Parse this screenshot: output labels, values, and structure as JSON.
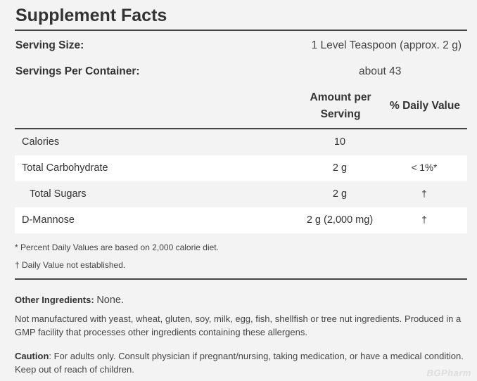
{
  "title": "Supplement Facts",
  "serving_size": {
    "label": "Serving Size:",
    "value": "1 Level Teaspoon (approx. 2 g)"
  },
  "servings_per_container": {
    "label": "Servings Per Container:",
    "value": "about 43"
  },
  "headers": {
    "amount_line1": "Amount per",
    "amount_line2": "Serving",
    "daily_value": "% Daily Value"
  },
  "rows": [
    {
      "name": "Calories",
      "amount": "10",
      "dv": ""
    },
    {
      "name": "Total Carbohydrate",
      "amount": "2 g",
      "dv": "< 1%*"
    },
    {
      "name": "Total Sugars",
      "amount": "2 g",
      "dv": "†"
    },
    {
      "name": "D-Mannose",
      "amount": "2 g (2,000 mg)",
      "dv": "†"
    }
  ],
  "footnotes": {
    "percent": "* Percent Daily Values are based on 2,000 calorie diet.",
    "dagger": "† Daily Value not established."
  },
  "other_ingredients": {
    "label": "Other Ingredients:",
    "value": "None."
  },
  "allergen_note": "Not manufactured with yeast, wheat, gluten, soy, milk, egg, fish, shellfish or tree nut ingredients. Produced in a GMP facility that processes other ingredients containing these allergens.",
  "caution": {
    "label": "Caution",
    "text": ": For adults only. Consult physician if pregnant/nursing, taking medication, or have a medical condition. Keep out of reach of children."
  },
  "watermark": "BGPharm"
}
